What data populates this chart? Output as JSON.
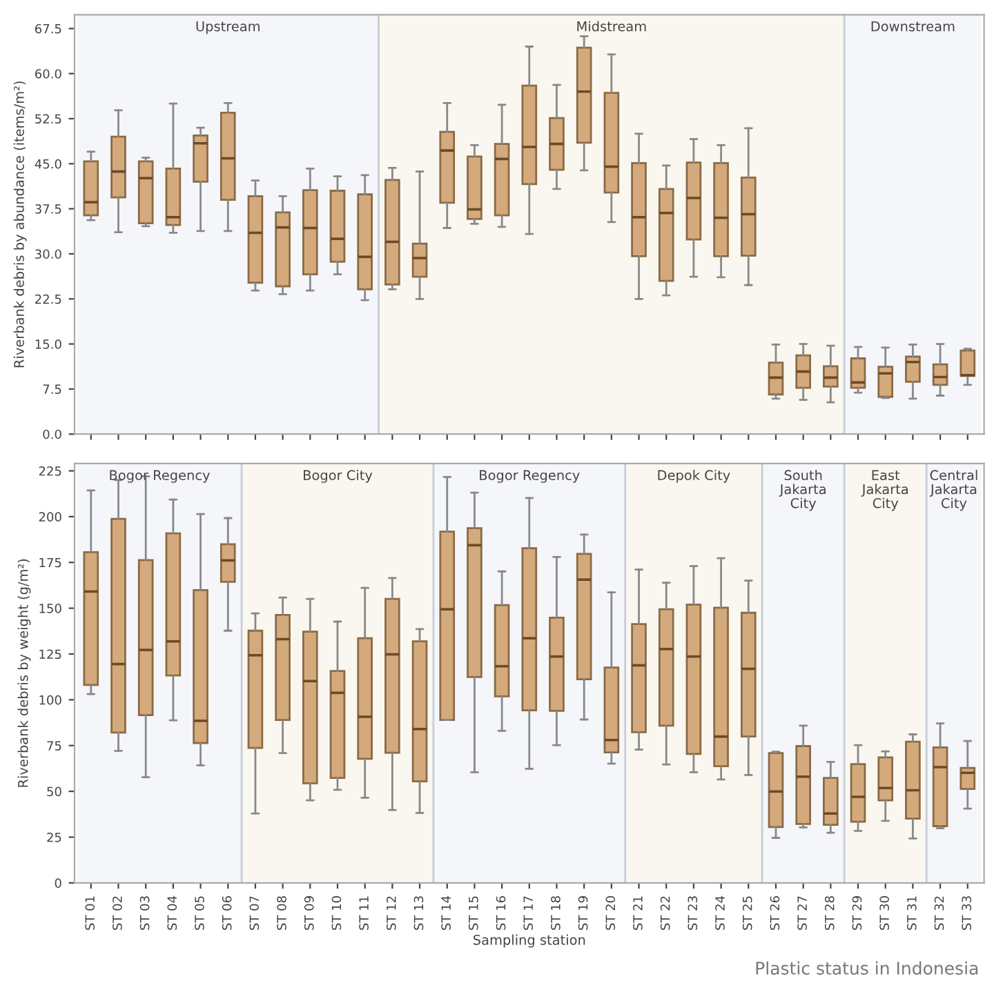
{
  "chart_data": [
    {
      "type": "box",
      "ylabel": "Riverbank debris by abundance (items/m²)",
      "tick_labels": "y",
      "grid": false,
      "categories": [
        "ST 01",
        "ST 02",
        "ST 03",
        "ST 04",
        "ST 05",
        "ST 06",
        "ST 07",
        "ST 08",
        "ST 09",
        "ST 10",
        "ST 11",
        "ST 12",
        "ST 13",
        "ST 14",
        "ST 15",
        "ST 16",
        "ST 17",
        "ST 18",
        "ST 19",
        "ST 20",
        "ST 21",
        "ST 22",
        "ST 23",
        "ST 24",
        "ST 25",
        "ST 26",
        "ST 27",
        "ST 28",
        "ST 29",
        "ST 30",
        "ST 31",
        "ST 32",
        "ST 33"
      ],
      "ylim": [
        0,
        69.8
      ],
      "yticks": [
        {
          "value": 0,
          "label": "0.0"
        },
        7.5,
        {
          "value": 15,
          "label": "15.0"
        },
        22.5,
        {
          "value": 30,
          "label": "30.0"
        },
        37.5,
        {
          "value": 45,
          "label": "45.0"
        },
        52.5,
        {
          "value": 60,
          "label": "60.0"
        },
        67.5
      ],
      "bands": [
        {
          "axis": "x",
          "from": "ST 01",
          "to": "ST 11",
          "label": "Upstream",
          "color": "#f4f6fa"
        },
        {
          "axis": "x",
          "from": "ST 12",
          "to": "ST 28",
          "label": "Midstream",
          "color": "#faf7f0"
        },
        {
          "axis": "x",
          "from": "ST 29",
          "to": "ST 33",
          "label": "Downstream",
          "color": "#f4f6fa"
        }
      ],
      "series": [
        {
          "color": "#d4aa7d",
          "boxes": [
            {
              "low": 35.6,
              "q1": 36.4,
              "median": 38.6,
              "q3": 45.4,
              "high": 47.0
            },
            {
              "low": 33.6,
              "q1": 39.4,
              "median": 43.7,
              "q3": 49.5,
              "high": 53.9
            },
            {
              "low": 34.6,
              "q1": 35.1,
              "median": 42.6,
              "q3": 45.4,
              "high": 46.0
            },
            {
              "low": 33.5,
              "q1": 34.8,
              "median": 36.1,
              "q3": 44.2,
              "high": 55.0
            },
            {
              "low": 33.8,
              "q1": 42.0,
              "median": 48.4,
              "q3": 49.7,
              "high": 51.0
            },
            {
              "low": 33.8,
              "q1": 39.0,
              "median": 45.9,
              "q3": 53.5,
              "high": 55.1
            },
            {
              "low": 23.9,
              "q1": 25.2,
              "median": 33.5,
              "q3": 39.6,
              "high": 42.2
            },
            {
              "low": 23.3,
              "q1": 24.6,
              "median": 34.4,
              "q3": 36.9,
              "high": 39.6
            },
            {
              "low": 23.9,
              "q1": 26.6,
              "median": 34.3,
              "q3": 40.6,
              "high": 44.2
            },
            {
              "low": 26.6,
              "q1": 28.7,
              "median": 32.5,
              "q3": 40.5,
              "high": 42.9
            },
            {
              "low": 22.3,
              "q1": 24.1,
              "median": 29.5,
              "q3": 39.9,
              "high": 43.1
            },
            {
              "low": 24.1,
              "q1": 24.9,
              "median": 32.0,
              "q3": 42.3,
              "high": 44.3
            },
            {
              "low": 22.5,
              "q1": 26.2,
              "median": 29.3,
              "q3": 31.7,
              "high": 43.7
            },
            {
              "low": 34.3,
              "q1": 38.5,
              "median": 47.2,
              "q3": 50.3,
              "high": 55.1
            },
            {
              "low": 35.0,
              "q1": 35.8,
              "median": 37.4,
              "q3": 46.2,
              "high": 48.1
            },
            {
              "low": 34.5,
              "q1": 36.4,
              "median": 45.8,
              "q3": 48.3,
              "high": 54.8
            },
            {
              "low": 33.3,
              "q1": 41.6,
              "median": 47.8,
              "q3": 58.0,
              "high": 64.5
            },
            {
              "low": 40.8,
              "q1": 44.0,
              "median": 48.3,
              "q3": 52.6,
              "high": 58.1
            },
            {
              "low": 43.9,
              "q1": 48.5,
              "median": 57.0,
              "q3": 64.3,
              "high": 66.2
            },
            {
              "low": 35.3,
              "q1": 40.2,
              "median": 44.5,
              "q3": 56.8,
              "high": 63.2
            },
            {
              "low": 22.5,
              "q1": 29.6,
              "median": 36.1,
              "q3": 45.1,
              "high": 50.0
            },
            {
              "low": 23.1,
              "q1": 25.5,
              "median": 36.8,
              "q3": 40.8,
              "high": 44.7
            },
            {
              "low": 26.2,
              "q1": 32.4,
              "median": 39.3,
              "q3": 45.2,
              "high": 49.1
            },
            {
              "low": 26.1,
              "q1": 29.6,
              "median": 36.0,
              "q3": 45.1,
              "high": 48.1
            },
            {
              "low": 24.8,
              "q1": 29.7,
              "median": 36.6,
              "q3": 42.7,
              "high": 50.9
            },
            {
              "low": 5.9,
              "q1": 6.6,
              "median": 9.4,
              "q3": 11.9,
              "high": 14.9
            },
            {
              "low": 5.7,
              "q1": 7.7,
              "median": 10.4,
              "q3": 13.1,
              "high": 15.0
            },
            {
              "low": 5.3,
              "q1": 7.9,
              "median": 9.4,
              "q3": 11.3,
              "high": 14.7
            },
            {
              "low": 6.9,
              "q1": 7.7,
              "median": 8.6,
              "q3": 12.6,
              "high": 14.5
            },
            {
              "low": 6.0,
              "q1": 6.2,
              "median": 10.1,
              "q3": 11.2,
              "high": 14.4
            },
            {
              "low": 5.9,
              "q1": 8.7,
              "median": 12.0,
              "q3": 12.9,
              "high": 14.9
            },
            {
              "low": 6.4,
              "q1": 8.2,
              "median": 9.5,
              "q3": 11.6,
              "high": 15.0
            },
            {
              "low": 8.2,
              "q1": 9.7,
              "median": 9.8,
              "q3": 13.9,
              "high": 14.2
            }
          ]
        }
      ]
    },
    {
      "type": "box",
      "xlabel": "Sampling station",
      "ylabel": "Riverbank debris by weight (g/m²)",
      "grid": false,
      "categories": [
        "ST 01",
        "ST 02",
        "ST 03",
        "ST 04",
        "ST 05",
        "ST 06",
        "ST 07",
        "ST 08",
        "ST 09",
        "ST 10",
        "ST 11",
        "ST 12",
        "ST 13",
        "ST 14",
        "ST 15",
        "ST 16",
        "ST 17",
        "ST 18",
        "ST 19",
        "ST 20",
        "ST 21",
        "ST 22",
        "ST 23",
        "ST 24",
        "ST 25",
        "ST 26",
        "ST 27",
        "ST 28",
        "ST 29",
        "ST 30",
        "ST 31",
        "ST 32",
        "ST 33"
      ],
      "ylim": [
        0,
        229
      ],
      "yticks": [
        0,
        25,
        50,
        75,
        100,
        125,
        150,
        175,
        200,
        225
      ],
      "bands": [
        {
          "axis": "x",
          "from": "ST 01",
          "to": "ST 06",
          "label": "Bogor Regency",
          "color": "#f4f6fa"
        },
        {
          "axis": "x",
          "from": "ST 07",
          "to": "ST 13",
          "label": "Bogor City",
          "color": "#faf7f0"
        },
        {
          "axis": "x",
          "from": "ST 14",
          "to": "ST 20",
          "label": "Bogor Regency",
          "color": "#f4f6fa"
        },
        {
          "axis": "x",
          "from": "ST 21",
          "to": "ST 25",
          "label": "Depok City",
          "color": "#faf7f0"
        },
        {
          "axis": "x",
          "from": "ST 26",
          "to": "ST 28",
          "label": "South\nJakarta\nCity",
          "color": "#f4f6fa"
        },
        {
          "axis": "x",
          "from": "ST 29",
          "to": "ST 31",
          "label": "East\nJakarta\nCity",
          "color": "#faf7f0"
        },
        {
          "axis": "x",
          "from": "ST 32",
          "to": "ST 33",
          "label": "Central\nJakarta\nCity",
          "color": "#f4f6fa"
        }
      ],
      "annotations": [
        "Plastic status in Indonesia"
      ],
      "series": [
        {
          "color": "#d4aa7d",
          "boxes": [
            {
              "low": 103.1,
              "q1": 108.1,
              "median": 159.1,
              "q3": 180.6,
              "high": 214.3
            },
            {
              "low": 72.1,
              "q1": 82.1,
              "median": 119.5,
              "q3": 198.8,
              "high": 220
            },
            {
              "low": 57.7,
              "q1": 91.6,
              "median": 127.2,
              "q3": 176.3,
              "high": 222
            },
            {
              "low": 88.8,
              "q1": 113.3,
              "median": 131.9,
              "q3": 190.9,
              "high": 209.3
            },
            {
              "low": 64.2,
              "q1": 76.4,
              "median": 88.5,
              "q3": 159.9,
              "high": 201.4
            },
            {
              "low": 137.7,
              "q1": 164.4,
              "median": 176.1,
              "q3": 184.9,
              "high": 199.2
            },
            {
              "low": 37.9,
              "q1": 73.7,
              "median": 124.3,
              "q3": 137.7,
              "high": 147.2
            },
            {
              "low": 70.9,
              "q1": 89.0,
              "median": 133.1,
              "q3": 146.3,
              "high": 155.8
            },
            {
              "low": 45.1,
              "q1": 54.4,
              "median": 110.2,
              "q3": 137.2,
              "high": 155.1
            },
            {
              "low": 50.8,
              "q1": 57.3,
              "median": 103.8,
              "q3": 115.7,
              "high": 142.7
            },
            {
              "low": 46.5,
              "q1": 67.8,
              "median": 90.7,
              "q3": 133.6,
              "high": 161.1
            },
            {
              "low": 39.8,
              "q1": 71.1,
              "median": 124.8,
              "q3": 155.1,
              "high": 166.5
            },
            {
              "low": 38.2,
              "q1": 55.4,
              "median": 84.0,
              "q3": 131.9,
              "high": 138.6
            },
            {
              "low": 89.0,
              "q1": 89.0,
              "median": 149.4,
              "q3": 191.8,
              "high": 221.7
            },
            {
              "low": 60.4,
              "q1": 112.4,
              "median": 184.4,
              "q3": 193.7,
              "high": 213.1
            },
            {
              "low": 83.0,
              "q1": 101.9,
              "median": 118.3,
              "q3": 151.7,
              "high": 170.1
            },
            {
              "low": 62.3,
              "q1": 94.2,
              "median": 133.6,
              "q3": 182.8,
              "high": 210.2
            },
            {
              "low": 75.2,
              "q1": 94.0,
              "median": 123.6,
              "q3": 144.8,
              "high": 178.0
            },
            {
              "low": 89.2,
              "q1": 111.2,
              "median": 165.6,
              "q3": 179.7,
              "high": 190.2
            },
            {
              "low": 65.1,
              "q1": 71.3,
              "median": 78.0,
              "q3": 117.6,
              "high": 158.7
            },
            {
              "low": 72.8,
              "q1": 82.3,
              "median": 118.8,
              "q3": 141.3,
              "high": 171.1
            },
            {
              "low": 64.7,
              "q1": 85.9,
              "median": 127.7,
              "q3": 149.4,
              "high": 163.9
            },
            {
              "low": 60.4,
              "q1": 70.4,
              "median": 123.6,
              "q3": 152.0,
              "high": 173.0
            },
            {
              "low": 56.5,
              "q1": 63.7,
              "median": 79.9,
              "q3": 150.3,
              "high": 177.3
            },
            {
              "low": 58.9,
              "q1": 79.9,
              "median": 116.9,
              "q3": 147.5,
              "high": 165.1
            },
            {
              "low": 24.6,
              "q1": 30.5,
              "median": 49.9,
              "q3": 70.9,
              "high": 71.6
            },
            {
              "low": 30.3,
              "q1": 32.2,
              "median": 58.0,
              "q3": 74.7,
              "high": 85.9
            },
            {
              "low": 27.4,
              "q1": 31.7,
              "median": 37.9,
              "q3": 57.3,
              "high": 66.1
            },
            {
              "low": 28.4,
              "q1": 33.4,
              "median": 47.0,
              "q3": 64.9,
              "high": 75.2
            },
            {
              "low": 33.9,
              "q1": 45.1,
              "median": 51.8,
              "q3": 68.5,
              "high": 71.8
            },
            {
              "low": 24.3,
              "q1": 35.1,
              "median": 50.6,
              "q3": 77.1,
              "high": 81.1
            },
            {
              "low": 29.8,
              "q1": 31.0,
              "median": 63.2,
              "q3": 74.0,
              "high": 87.1
            },
            {
              "low": 40.6,
              "q1": 51.3,
              "median": 60.1,
              "q3": 62.8,
              "high": 77.5
            }
          ]
        }
      ]
    }
  ]
}
